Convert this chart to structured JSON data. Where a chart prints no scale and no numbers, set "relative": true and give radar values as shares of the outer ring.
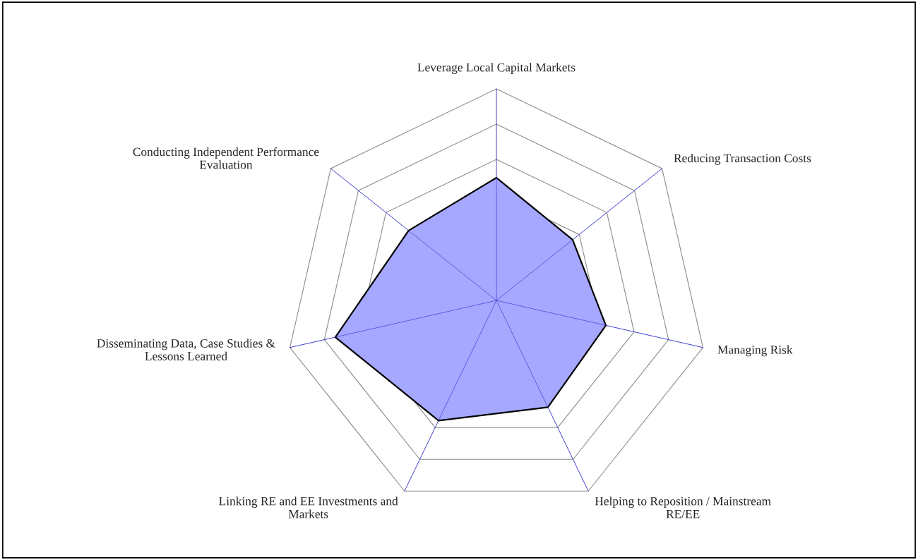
{
  "chart_data": {
    "type": "radar",
    "relative": true,
    "grid": true,
    "legend": false,
    "categories": [
      "Leverage Local Capital Markets",
      "Reducing Transaction Costs",
      "Managing Risk",
      "Helping to Reposition / Mainstream\nRE/EE",
      "Linking RE and EE Investments and\nMarkets",
      "Disseminating Data, Case Studies &\nLessons Learned",
      "Conducting Independent Performance\nEvaluation"
    ],
    "series": [
      {
        "color": "#a6a8ff",
        "values": [
          0.58,
          0.46,
          0.53,
          0.56,
          0.63,
          0.78,
          0.53
        ]
      }
    ]
  }
}
